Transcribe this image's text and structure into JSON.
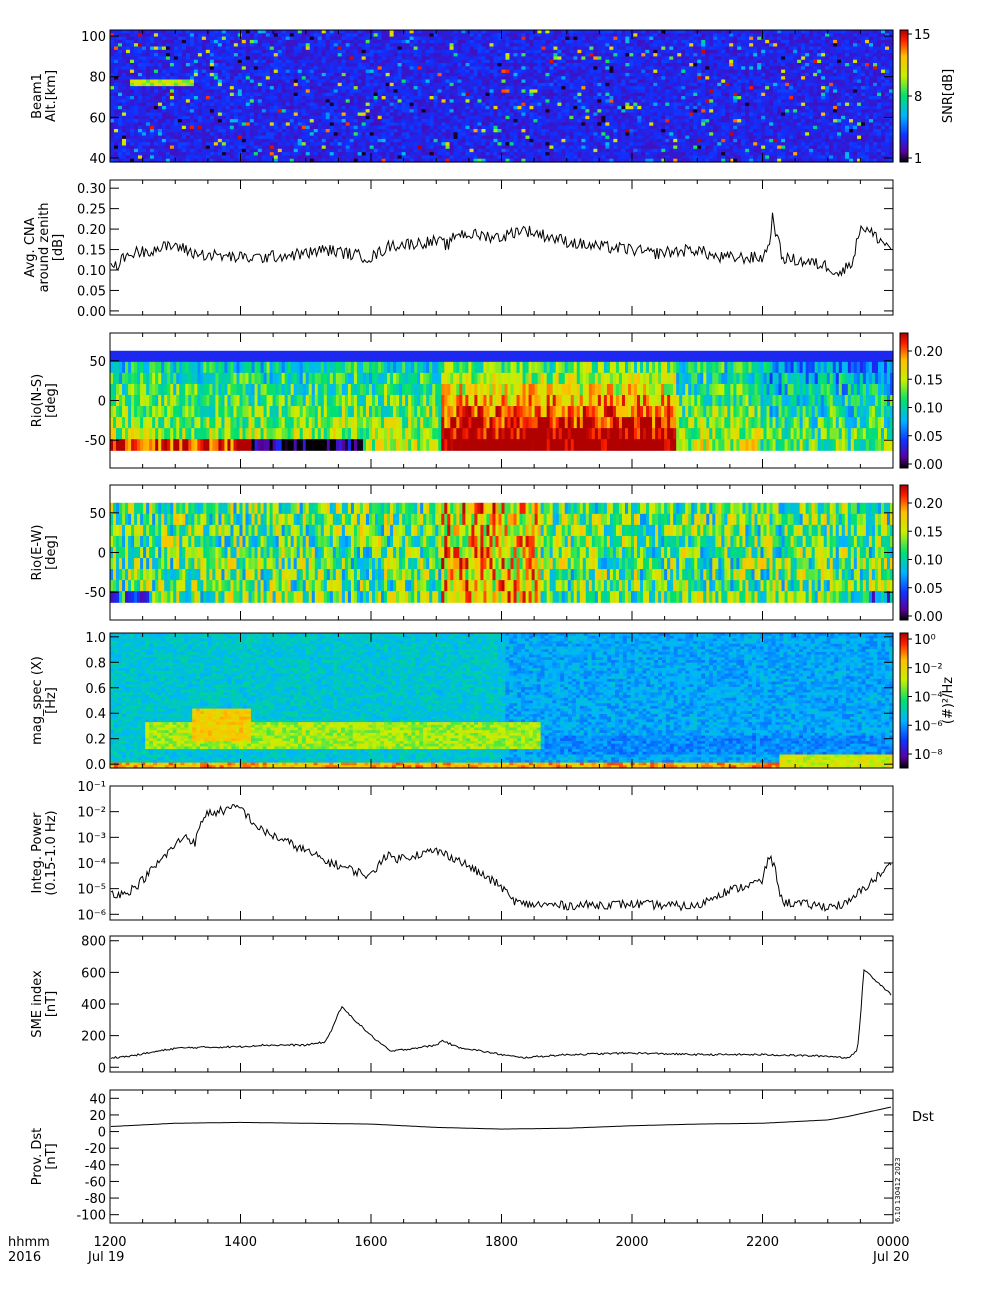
{
  "chart_data": [
    {
      "type": "heatmap",
      "ylabel": [
        "Beam1",
        "Alt.[km]"
      ],
      "yticks": [
        "40",
        "60",
        "80",
        "100"
      ],
      "ylim": [
        38,
        103
      ],
      "yticks_values": [
        40,
        60,
        80,
        100
      ],
      "colorbar": {
        "label": "SNR[dB]",
        "ticks": [
          "1",
          "8",
          "15"
        ],
        "range": [
          1,
          15
        ]
      },
      "colorscale": "rainbow"
    },
    {
      "type": "line",
      "ylabel": [
        "Avg. CNA",
        "around zenith",
        "[dB]"
      ],
      "yticks": [
        "0.00",
        "0.05",
        "0.10",
        "0.15",
        "0.20",
        "0.25",
        "0.30"
      ],
      "ylim": [
        -0.01,
        0.32
      ],
      "x": [
        1200,
        1230,
        1300,
        1330,
        1400,
        1430,
        1500,
        1530,
        1600,
        1630,
        1700,
        1720,
        1730,
        1800,
        1830,
        1900,
        1930,
        2000,
        2030,
        2100,
        2130,
        2200,
        2210,
        2215,
        2230,
        2300,
        2320,
        2340,
        2350,
        2400
      ],
      "y": [
        0.1,
        0.14,
        0.16,
        0.14,
        0.13,
        0.13,
        0.14,
        0.15,
        0.13,
        0.16,
        0.17,
        0.16,
        0.19,
        0.18,
        0.2,
        0.17,
        0.16,
        0.15,
        0.14,
        0.15,
        0.13,
        0.13,
        0.16,
        0.23,
        0.13,
        0.11,
        0.09,
        0.13,
        0.21,
        0.15
      ]
    },
    {
      "type": "heatmap",
      "ylabel": [
        "Rio(N-S)",
        "[deg]"
      ],
      "yticks": [
        "-50",
        "0",
        "50"
      ],
      "ylim": [
        -85,
        85
      ],
      "yticks_values": [
        -50,
        0,
        50
      ],
      "colorbar": {
        "label": "",
        "ticks": [
          "0.00",
          "0.05",
          "0.10",
          "0.15",
          "0.20"
        ],
        "range": [
          0,
          0.24
        ]
      },
      "colorscale": "rainbow"
    },
    {
      "type": "heatmap",
      "ylabel": [
        "Rio(E-W)",
        "[deg]"
      ],
      "yticks": [
        "-50",
        "0",
        "50"
      ],
      "ylim": [
        -85,
        85
      ],
      "yticks_values": [
        -50,
        0,
        50
      ],
      "colorbar": {
        "label": "",
        "ticks": [
          "0.00",
          "0.05",
          "0.10",
          "0.15",
          "0.20"
        ],
        "range": [
          0,
          0.24
        ]
      },
      "colorscale": "rainbow"
    },
    {
      "type": "heatmap",
      "ylabel": [
        "mag_spec (X)",
        "[Hz]"
      ],
      "yticks": [
        "0.0",
        "0.2",
        "0.4",
        "0.6",
        "0.8",
        "1.0"
      ],
      "ylim": [
        -0.03,
        1.03
      ],
      "yticks_values": [
        0,
        0.2,
        0.4,
        0.6,
        0.8,
        1.0
      ],
      "colorbar": {
        "label": "(#)²/Hz",
        "ticks": [
          "10⁰",
          "10⁻²",
          "10⁻⁴",
          "10⁻⁶",
          "10⁻⁸"
        ],
        "range": [
          -9,
          0.5
        ]
      },
      "colorscale": "rainbow"
    },
    {
      "type": "line",
      "log_y": true,
      "ylabel": [
        "Integ. Power",
        "(0.15-1.0 Hz)"
      ],
      "yticks": [
        "10⁻⁶",
        "10⁻⁵",
        "10⁻⁴",
        "10⁻³",
        "10⁻²",
        "10⁻¹"
      ],
      "ylim": [
        6e-07,
        0.1
      ],
      "x": [
        1200,
        1220,
        1240,
        1300,
        1315,
        1330,
        1345,
        1400,
        1415,
        1430,
        1500,
        1530,
        1600,
        1620,
        1640,
        1700,
        1730,
        1800,
        1815,
        1830,
        1900,
        2000,
        2100,
        2130,
        2200,
        2210,
        2220,
        2230,
        2300,
        2330,
        2345,
        2400
      ],
      "y": [
        7e-06,
        6e-06,
        1.2e-05,
        0.0005,
        0.0012,
        0.0006,
        0.008,
        0.015,
        0.005,
        0.002,
        0.0003,
        0.00012,
        3e-05,
        0.0002,
        0.00015,
        0.0003,
        0.00015,
        1.2e-05,
        4e-06,
        2.5e-06,
        2.2e-06,
        2.5e-06,
        2e-06,
        6e-06,
        2e-05,
        0.0002,
        5e-05,
        3e-06,
        2e-06,
        2.5e-06,
        6e-06,
        0.0001
      ]
    },
    {
      "type": "line",
      "ylabel": [
        "SME index",
        "[nT]"
      ],
      "yticks": [
        "0",
        "200",
        "400",
        "600",
        "800"
      ],
      "ylim": [
        -30,
        830
      ],
      "x": [
        1200,
        1230,
        1300,
        1330,
        1400,
        1430,
        1500,
        1530,
        1540,
        1550,
        1555,
        1600,
        1630,
        1700,
        1710,
        1730,
        1800,
        1830,
        1900,
        2000,
        2100,
        2200,
        2300,
        2330,
        2345,
        2350,
        2355,
        2400
      ],
      "y": [
        60,
        70,
        120,
        125,
        130,
        140,
        140,
        160,
        240,
        340,
        380,
        200,
        100,
        140,
        170,
        130,
        80,
        60,
        80,
        90,
        80,
        80,
        70,
        60,
        100,
        300,
        620,
        450
      ]
    },
    {
      "type": "line",
      "ylabel": [
        "Prov. Dst",
        "[nT]"
      ],
      "yticks": [
        "-100",
        "-80",
        "-60",
        "-40",
        "-20",
        "0",
        "20",
        "40"
      ],
      "ylim": [
        -110,
        50
      ],
      "x": [
        1200,
        1300,
        1400,
        1500,
        1600,
        1700,
        1800,
        1900,
        2000,
        2100,
        2200,
        2300,
        2330,
        2400
      ],
      "y": [
        6,
        10,
        11,
        10,
        9,
        5,
        3,
        4,
        7,
        9,
        10,
        14,
        18,
        30
      ],
      "annotation": "Dst"
    }
  ],
  "xaxis": {
    "ticks": [
      "1200",
      "1400",
      "1600",
      "1800",
      "2000",
      "2200",
      "0000"
    ],
    "tick_values": [
      1200,
      1400,
      1600,
      1800,
      2000,
      2200,
      2400
    ],
    "xlim": [
      1200,
      2400
    ],
    "row_label_1": "hhmm",
    "row_label_2": "2016",
    "start_date": "Jul 19",
    "end_date": "Jul 20"
  },
  "stamp": "6.10 130412 2023"
}
